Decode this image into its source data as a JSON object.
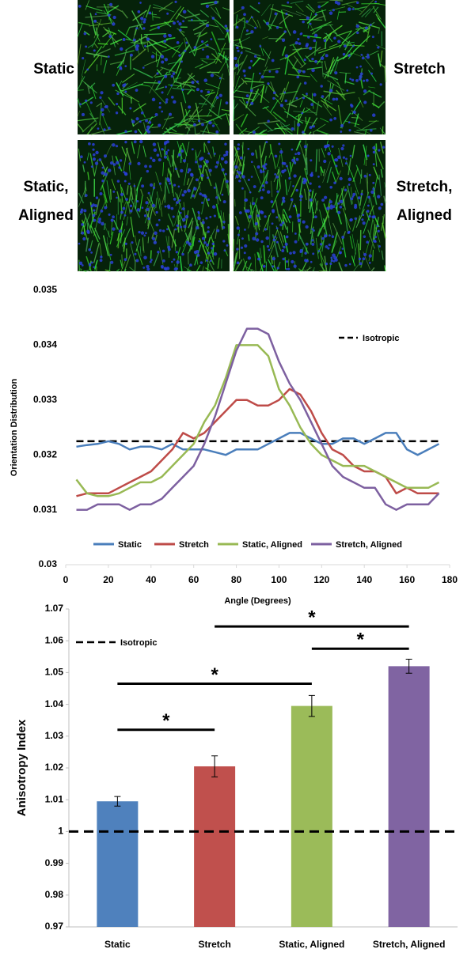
{
  "panels": [
    {
      "label": [
        "Static"
      ],
      "color": "#4f81bd"
    },
    {
      "label": [
        "Stretch"
      ],
      "color": "#c0504d"
    },
    {
      "label": [
        "Static,",
        "Aligned"
      ],
      "color": "#9bbb59"
    },
    {
      "label": [
        "Stretch,",
        "Aligned"
      ],
      "color": "#8064a2"
    }
  ],
  "chart_data": [
    {
      "type": "line",
      "x_label": "Angle (Degrees)",
      "y_label": "Orientation Distribution",
      "x": [
        5,
        10,
        15,
        20,
        25,
        30,
        35,
        40,
        45,
        50,
        55,
        60,
        65,
        70,
        75,
        80,
        85,
        90,
        95,
        100,
        105,
        110,
        115,
        120,
        125,
        130,
        135,
        140,
        145,
        150,
        155,
        160,
        165,
        170,
        175
      ],
      "series": [
        {
          "name": "Static",
          "color": "#4a7ebb",
          "values": [
            0.03215,
            0.03218,
            0.0322,
            0.03225,
            0.0322,
            0.0321,
            0.03215,
            0.03215,
            0.0321,
            0.0322,
            0.0321,
            0.0321,
            0.0321,
            0.03205,
            0.032,
            0.0321,
            0.0321,
            0.0321,
            0.0322,
            0.0323,
            0.0324,
            0.0324,
            0.0323,
            0.0322,
            0.0322,
            0.0323,
            0.0323,
            0.0322,
            0.0323,
            0.0324,
            0.0324,
            0.0321,
            0.032,
            0.0321,
            0.0322
          ]
        },
        {
          "name": "Stretch",
          "color": "#be4b48",
          "values": [
            0.03125,
            0.0313,
            0.0313,
            0.0313,
            0.0314,
            0.0315,
            0.0316,
            0.0317,
            0.0319,
            0.0321,
            0.0324,
            0.0323,
            0.0324,
            0.0326,
            0.0328,
            0.033,
            0.033,
            0.0329,
            0.0329,
            0.033,
            0.0332,
            0.0331,
            0.0328,
            0.0324,
            0.0321,
            0.032,
            0.0318,
            0.0317,
            0.0317,
            0.0316,
            0.0313,
            0.0314,
            0.0313,
            0.0313,
            0.0313
          ]
        },
        {
          "name": "Static, Aligned",
          "color": "#98b954",
          "values": [
            0.03155,
            0.0313,
            0.03125,
            0.03125,
            0.0313,
            0.0314,
            0.0315,
            0.0315,
            0.0316,
            0.0318,
            0.032,
            0.0322,
            0.0326,
            0.0329,
            0.0334,
            0.034,
            0.034,
            0.034,
            0.0338,
            0.0332,
            0.0329,
            0.0325,
            0.0322,
            0.032,
            0.0319,
            0.0318,
            0.0318,
            0.0318,
            0.0317,
            0.0316,
            0.0315,
            0.0314,
            0.0314,
            0.0314,
            0.0315
          ]
        },
        {
          "name": "Stretch, Aligned",
          "color": "#7d60a0",
          "values": [
            0.031,
            0.031,
            0.0311,
            0.0311,
            0.0311,
            0.031,
            0.0311,
            0.0311,
            0.0312,
            0.0314,
            0.0316,
            0.0318,
            0.0322,
            0.0327,
            0.0333,
            0.0339,
            0.0343,
            0.0343,
            0.0342,
            0.0337,
            0.0333,
            0.033,
            0.0326,
            0.0322,
            0.0318,
            0.0316,
            0.0315,
            0.0314,
            0.0314,
            0.0311,
            0.031,
            0.0311,
            0.0311,
            0.0311,
            0.0313
          ]
        }
      ],
      "reference": {
        "name": "Isotropic",
        "value": 0.03225
      },
      "xlim": [
        0,
        180
      ],
      "xticks": [
        0,
        20,
        40,
        60,
        80,
        100,
        120,
        140,
        160,
        180
      ],
      "ylim": [
        0.03,
        0.035
      ],
      "yticks": [
        0.03,
        0.031,
        0.032,
        0.033,
        0.034,
        0.035
      ]
    },
    {
      "type": "bar",
      "y_label": "Anisotropy Index",
      "categories": [
        "Static",
        "Stretch",
        "Static, Aligned",
        "Stretch, Aligned"
      ],
      "values": [
        1.0095,
        1.0205,
        1.0395,
        1.052
      ],
      "errors": [
        0.0015,
        0.0033,
        0.0033,
        0.0022
      ],
      "colors": [
        "#4f81bd",
        "#c0504d",
        "#9bbb59",
        "#8064a2"
      ],
      "reference": {
        "name": "Isotropic",
        "value": 1
      },
      "significance": [
        {
          "from": "Static",
          "to": "Stretch",
          "y": 1.032,
          "label": "*"
        },
        {
          "from": "Static",
          "to": "Static, Aligned",
          "y": 1.0465,
          "label": "*"
        },
        {
          "from": "Static, Aligned",
          "to": "Stretch, Aligned",
          "y": 1.0575,
          "label": "*"
        },
        {
          "from": "Stretch",
          "to": "Stretch, Aligned",
          "y": 1.0645,
          "label": "*"
        }
      ],
      "ylim": [
        0.97,
        1.07
      ],
      "yticks": [
        0.97,
        0.98,
        0.99,
        1,
        1.01,
        1.02,
        1.03,
        1.04,
        1.05,
        1.06,
        1.07
      ]
    }
  ]
}
